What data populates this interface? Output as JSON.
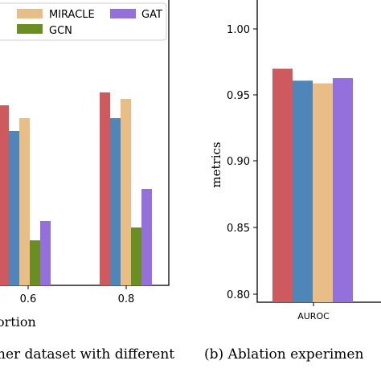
{
  "chart_data": [
    {
      "type": "bar",
      "categories": [
        "0.6",
        "0.8"
      ],
      "xlabel_visible": "ortion",
      "legend_placement": "top",
      "series": [
        {
          "name": "",
          "values": [
            0.92,
            0.93
          ],
          "color": "#cf5a5d"
        },
        {
          "name": "",
          "values": [
            0.9,
            0.91
          ],
          "color": "#4f86b9"
        },
        {
          "name": "MIRACLE",
          "values": [
            0.91,
            0.925
          ],
          "color": "#e8bd86"
        },
        {
          "name": "GCN",
          "values": [
            0.815,
            0.825
          ],
          "color": "#6b8e23"
        },
        {
          "name": "GAT",
          "values": [
            0.83,
            0.855
          ],
          "color": "#9370db"
        }
      ],
      "caption_fragment": "her dataset with different"
    },
    {
      "type": "bar",
      "categories": [
        "AUROC"
      ],
      "ylabel": "metrics",
      "ylim": [
        0.8,
        1.02
      ],
      "yticks": [
        "0.80",
        "0.85",
        "0.90",
        "0.95",
        "1.00"
      ],
      "series": [
        {
          "values": [
            0.97
          ],
          "color": "#cf5a5d"
        },
        {
          "values": [
            0.961
          ],
          "color": "#4f86b9"
        },
        {
          "values": [
            0.959
          ],
          "color": "#e8bd86"
        },
        {
          "values": [
            0.963
          ],
          "color": "#9370db"
        }
      ],
      "caption_fragment": "(b)  Ablation experimen"
    }
  ]
}
